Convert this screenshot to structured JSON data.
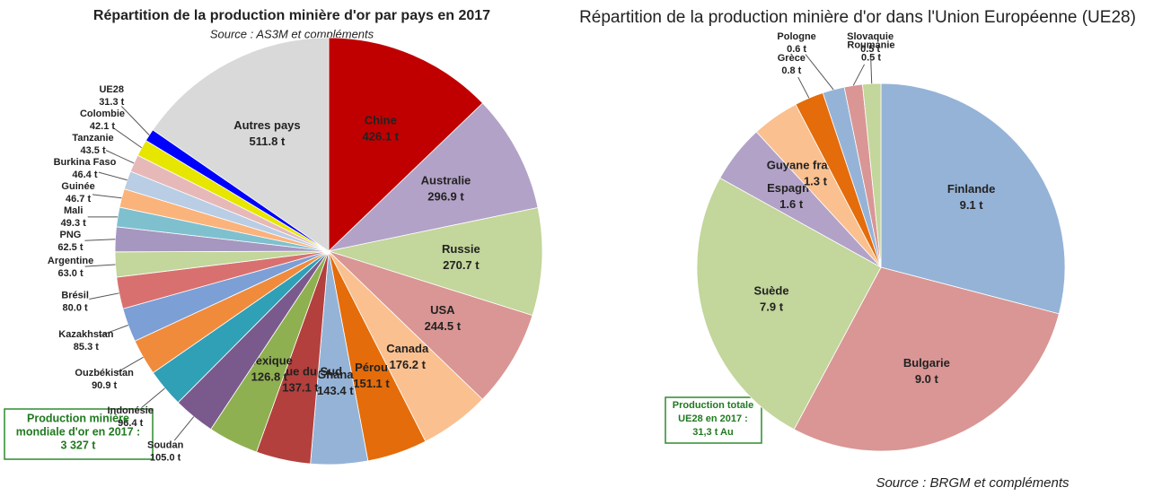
{
  "chart_data": [
    {
      "type": "pie",
      "title": "Répartition de la production minière d'or par pays en 2017",
      "subtitle": "Source : AS3M et compléments",
      "categories": [
        "Chine",
        "Australie",
        "Russie",
        "USA",
        "Canada",
        "Pérou",
        "Ghana",
        "Afrique du Sud",
        "Mexique",
        "Soudan",
        "Indonésie",
        "Ouzbékistan",
        "Kazakhstan",
        "Brésil",
        "Argentine",
        "PNG",
        "Mali",
        "Guinée",
        "Burkina Faso",
        "Tanzanie",
        "Colombie",
        "UE28",
        "Autres pays"
      ],
      "values": [
        426.1,
        296.9,
        270.7,
        244.5,
        176.2,
        151.1,
        143.4,
        137.1,
        126.8,
        105.0,
        96.4,
        90.9,
        85.3,
        80.0,
        63.0,
        62.5,
        49.3,
        46.7,
        46.4,
        43.5,
        42.1,
        31.3,
        511.8
      ],
      "value_labels": [
        "426.1 t",
        "296.9 t",
        "270.7 t",
        "244.5 t",
        "176.2 t",
        "151.1 t",
        "143.4 t",
        "137.1 t",
        "126.8 t",
        "105.0 t",
        "96.4 t",
        "90.9 t",
        "85.3 t",
        "80.0 t",
        "63.0 t",
        "62.5 t",
        "49.3 t",
        "46.7 t",
        "46.4 t",
        "43.5 t",
        "42.1 t",
        "31.3 t",
        "511.8 t"
      ],
      "colors": [
        "#c00000",
        "#b3a2c7",
        "#c3d69b",
        "#d99694",
        "#fac090",
        "#e46c0a",
        "#95b3d7",
        "#b3403d",
        "#8fb050",
        "#7a5a8c",
        "#2fa0b6",
        "#f08b3c",
        "#7c9fd6",
        "#d97070",
        "#c3d69b",
        "#a597c0",
        "#7fc0cf",
        "#fab37a",
        "#b9cde5",
        "#e6b9b8",
        "#e6e600",
        "#0000ff",
        "#d9d9d9"
      ],
      "annotation": [
        "Production minière",
        "mondiale d'or en 2017 :",
        "3 327 t"
      ]
    },
    {
      "type": "pie",
      "title": "Répartition de la production minière d'or dans l'Union Européenne (UE28)",
      "categories": [
        "Finlande",
        "Bulgarie",
        "Suède",
        "Espagne",
        "Guyane française",
        "Grèce",
        "Pologne",
        "Roumanie",
        "Slovaquie"
      ],
      "values": [
        9.1,
        9.0,
        7.9,
        1.6,
        1.3,
        0.8,
        0.6,
        0.5,
        0.5
      ],
      "value_labels": [
        "9.1 t",
        "9.0 t",
        "7.9 t",
        "1.6 t",
        "1.3 t",
        "0.8 t",
        "0.6 t",
        "0.5 t",
        "0.5 t"
      ],
      "colors": [
        "#95b3d7",
        "#d99694",
        "#c3d69b",
        "#b3a2c7",
        "#fac090",
        "#e46c0a",
        "#95b3d7",
        "#d99694",
        "#c3d69b"
      ],
      "annotation": [
        "Production totale",
        "UE28 en 2017 :",
        "31,3 t Au"
      ],
      "source": "Source : BRGM et compléments"
    }
  ]
}
